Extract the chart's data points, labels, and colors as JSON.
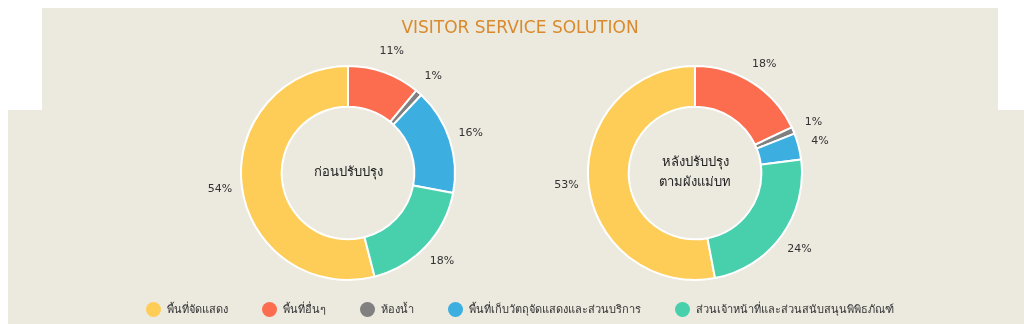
{
  "chart_data": [
    {
      "type": "donut",
      "title": "VISITOR SERVICE SOLUTION",
      "subtitle": "ก่อนปรับปรุง",
      "categories": [
        "พื้นที่จัดแสดง",
        "พื้นที่อื่นๆ",
        "ห้องน้ำ",
        "พื้นที่เก็บวัตถุจัดแสดงและส่วนบริการ",
        "ส่วนเจ้าหน้าที่และส่วนสนับสนุนพิพิธภัณฑ์"
      ],
      "values": [
        54,
        11,
        1,
        16,
        18
      ],
      "colors": [
        "#fecd57",
        "#fc6d4f",
        "#808080",
        "#3daee0",
        "#48d0ac"
      ],
      "value_labels": [
        "54%",
        "11%",
        "1%",
        "16%",
        "18%"
      ],
      "legend": "bottom"
    },
    {
      "type": "donut",
      "subtitle": "หลังปรับปรุง\nตามผังแม่บท",
      "categories": [
        null,
        null,
        null,
        null,
        null
      ],
      "values": [
        53,
        18,
        1,
        4,
        24
      ],
      "colors": [
        "#fecd57",
        "#fc6d4f",
        "#808080",
        "#3daee0",
        "#48d0ac"
      ],
      "value_labels": [
        "53%",
        "18%",
        "1%",
        "4%",
        "24%"
      ]
    }
  ]
}
